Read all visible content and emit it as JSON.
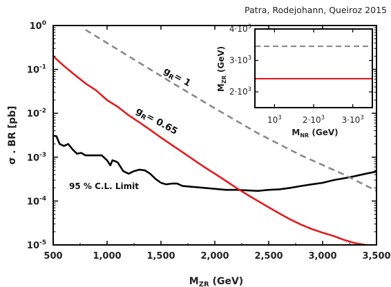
{
  "chart_data": {
    "type": "line",
    "annotation_top": "Patra, Rodejohann, Queiroz 2015",
    "xlabel": "M",
    "xlabel_sub": "ZR",
    "xlabel_unit": " (GeV)",
    "ylabel": "σ . BR [pb]",
    "xlim": [
      500,
      3500
    ],
    "ylim": [
      1e-05,
      1
    ],
    "yscale": "log",
    "x_ticks": [
      {
        "value": 500,
        "label": "500"
      },
      {
        "value": 1000,
        "label": "1,000"
      },
      {
        "value": 1500,
        "label": "1,500"
      },
      {
        "value": 2000,
        "label": "2,000"
      },
      {
        "value": 2500,
        "label": "2,500"
      },
      {
        "value": 3000,
        "label": "3,000"
      },
      {
        "value": 3500,
        "label": "3,500"
      }
    ],
    "y_ticks": [
      {
        "value": 1,
        "base": "10",
        "exp": "0"
      },
      {
        "value": 0.1,
        "base": "10",
        "exp": "-1"
      },
      {
        "value": 0.01,
        "base": "10",
        "exp": "-2"
      },
      {
        "value": 0.001,
        "base": "10",
        "exp": "-3"
      },
      {
        "value": 0.0001,
        "base": "10",
        "exp": "-4"
      },
      {
        "value": 1e-05,
        "base": "10",
        "exp": "-5"
      }
    ],
    "series": [
      {
        "name": "95 % C.L. Limit",
        "color": "#000000",
        "style": "solid",
        "x": [
          500,
          530,
          560,
          600,
          640,
          680,
          720,
          760,
          800,
          850,
          900,
          950,
          1000,
          1030,
          1050,
          1080,
          1100,
          1150,
          1200,
          1250,
          1300,
          1350,
          1400,
          1450,
          1500,
          1550,
          1600,
          1650,
          1700,
          1800,
          1900,
          2000,
          2100,
          2200,
          2300,
          2400,
          2500,
          2600,
          2700,
          2800,
          2900,
          3000,
          3100,
          3200,
          3300,
          3400,
          3500
        ],
        "y": [
          0.0031,
          0.003,
          0.002,
          0.0018,
          0.002,
          0.0015,
          0.0012,
          0.00125,
          0.0011,
          0.0011,
          0.0011,
          0.0011,
          0.00085,
          0.00065,
          0.00085,
          0.0008,
          0.00075,
          0.00048,
          0.00042,
          0.00048,
          0.00052,
          0.0005,
          0.00042,
          0.00032,
          0.00026,
          0.00024,
          0.00025,
          0.00025,
          0.00022,
          0.00021,
          0.0002,
          0.00019,
          0.00018,
          0.00018,
          0.000175,
          0.00017,
          0.00018,
          0.000185,
          0.0002,
          0.00022,
          0.00024,
          0.00026,
          0.0003,
          0.00033,
          0.00037,
          0.00042,
          0.00047
        ]
      },
      {
        "name": "g_R= 0.65",
        "color": "#e41a1c",
        "style": "solid",
        "x": [
          500,
          600,
          700,
          800,
          900,
          1000,
          1100,
          1200,
          1300,
          1400,
          1500,
          1600,
          1700,
          1800,
          1900,
          2000,
          2100,
          2200,
          2300,
          2400,
          2500,
          2600,
          2700,
          2800,
          2900,
          3000,
          3100,
          3200,
          3300,
          3400
        ],
        "y": [
          0.2,
          0.12,
          0.075,
          0.048,
          0.033,
          0.02,
          0.014,
          0.009,
          0.0062,
          0.0042,
          0.0028,
          0.0019,
          0.0013,
          0.00088,
          0.0006,
          0.00042,
          0.00029,
          0.0002,
          0.00014,
          0.0001,
          7.2e-05,
          5.2e-05,
          3.8e-05,
          2.9e-05,
          2.3e-05,
          1.9e-05,
          1.6e-05,
          1.3e-05,
          1.1e-05,
          1e-05
        ]
      },
      {
        "name": "g_R= 1",
        "color": "#888888",
        "style": "dashed",
        "x": [
          800,
          1200,
          1600,
          2000,
          2400,
          2800,
          3200,
          3500
        ],
        "y": [
          0.8,
          0.2,
          0.05,
          0.013,
          0.0035,
          0.0011,
          0.0004,
          0.00017
        ]
      }
    ],
    "labels": {
      "limit": "95 % C.L. Limit",
      "g065_base": "g",
      "g065_sub": "R",
      "g065_rest": "= 0.65",
      "g1_base": "g",
      "g1_sub": "R",
      "g1_rest": "= 1"
    },
    "inset": {
      "xlabel": "M",
      "xlabel_sub": "NR",
      "xlabel_unit": " (GeV)",
      "ylabel": "M",
      "ylabel_sub": "ZR",
      "ylabel_unit": " (GeV)",
      "xlim": [
        500,
        3500
      ],
      "ylim": [
        1500,
        4000
      ],
      "x_ticks": [
        {
          "value": 1000,
          "base": "10",
          "exp": "3"
        },
        {
          "value": 2000,
          "base": "2·10",
          "exp": "3"
        },
        {
          "value": 3000,
          "base": "3·10",
          "exp": "3"
        }
      ],
      "y_ticks": [
        {
          "value": 2000,
          "base": "2·10",
          "exp": "3"
        },
        {
          "value": 3000,
          "base": "3·10",
          "exp": "3"
        },
        {
          "value": 4000,
          "base": "4·10",
          "exp": "3"
        }
      ],
      "lines": [
        {
          "name": "g_R= 0.65",
          "y": 2420,
          "color": "#e41a1c",
          "style": "solid"
        },
        {
          "name": "g_R= 1",
          "y": 3450,
          "color": "#888888",
          "style": "dashed"
        }
      ]
    }
  }
}
